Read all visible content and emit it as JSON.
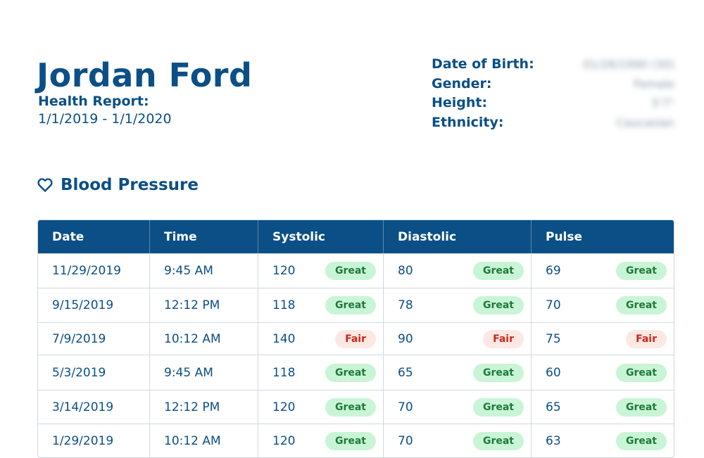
{
  "patient": {
    "name": "Jordan Ford",
    "report_label": "Health Report:",
    "report_range": "1/1/2019 - 1/1/2020"
  },
  "demographics": [
    {
      "label": "Date of Birth:",
      "value": "01/28/1990 (30)"
    },
    {
      "label": "Gender:",
      "value": "Female"
    },
    {
      "label": "Height:",
      "value": "5'7\""
    },
    {
      "label": "Ethnicity:",
      "value": "Caucasian"
    }
  ],
  "section": {
    "title": "Blood Pressure",
    "icon": "heart-icon"
  },
  "table": {
    "headers": [
      "Date",
      "Time",
      "Systolic",
      "Diastolic",
      "Pulse"
    ],
    "rows": [
      {
        "date": "11/29/2019",
        "time": "9:45 AM",
        "systolic": "120",
        "systolic_status": "Great",
        "diastolic": "80",
        "diastolic_status": "Great",
        "pulse": "69",
        "pulse_status": "Great"
      },
      {
        "date": "9/15/2019",
        "time": "12:12 PM",
        "systolic": "118",
        "systolic_status": "Great",
        "diastolic": "78",
        "diastolic_status": "Great",
        "pulse": "70",
        "pulse_status": "Great"
      },
      {
        "date": "7/9/2019",
        "time": "10:12 AM",
        "systolic": "140",
        "systolic_status": "Fair",
        "diastolic": "90",
        "diastolic_status": "Fair",
        "pulse": "75",
        "pulse_status": "Fair"
      },
      {
        "date": "5/3/2019",
        "time": "9:45 AM",
        "systolic": "118",
        "systolic_status": "Great",
        "diastolic": "65",
        "diastolic_status": "Great",
        "pulse": "60",
        "pulse_status": "Great"
      },
      {
        "date": "3/14/2019",
        "time": "12:12 PM",
        "systolic": "120",
        "systolic_status": "Great",
        "diastolic": "70",
        "diastolic_status": "Great",
        "pulse": "65",
        "pulse_status": "Great"
      },
      {
        "date": "1/29/2019",
        "time": "10:12 AM",
        "systolic": "120",
        "systolic_status": "Great",
        "diastolic": "70",
        "diastolic_status": "Great",
        "pulse": "63",
        "pulse_status": "Great"
      }
    ]
  },
  "colors": {
    "brand": "#0b4f86",
    "great_bg": "#c9f5d6",
    "great_text": "#1d7a3a",
    "fair_bg": "#fde8e4",
    "fair_text": "#c9281b"
  }
}
